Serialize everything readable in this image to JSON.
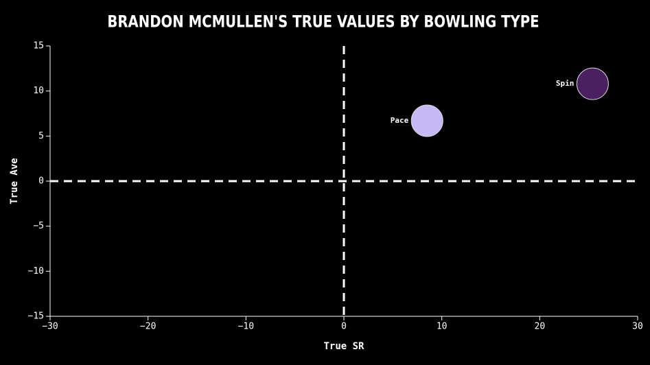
{
  "chart_data": {
    "type": "scatter",
    "title": "BRANDON MCMULLEN'S TRUE VALUES BY BOWLING TYPE",
    "x_label": "True SR",
    "y_label": "True Ave",
    "xlim": [
      -30,
      30
    ],
    "xticks": [
      {
        "value": -30,
        "label": "−30"
      },
      {
        "value": -20,
        "label": "−20"
      },
      {
        "value": -10,
        "label": "−10"
      },
      0,
      10,
      20,
      30
    ],
    "ylim": [
      -15,
      15
    ],
    "yticks": [
      {
        "value": -15,
        "label": "−15"
      },
      {
        "value": -10,
        "label": "−10"
      },
      {
        "value": -5,
        "label": "−5"
      },
      0,
      5,
      10,
      15
    ],
    "reference_lines": {
      "x": 0,
      "y": 0
    },
    "points": [
      {
        "name": "Pace",
        "x": 8.5,
        "y": 6.7,
        "color": "#c5b8f5"
      },
      {
        "name": "Spin",
        "x": 25.4,
        "y": 10.8,
        "color": "#4a2060"
      }
    ]
  }
}
